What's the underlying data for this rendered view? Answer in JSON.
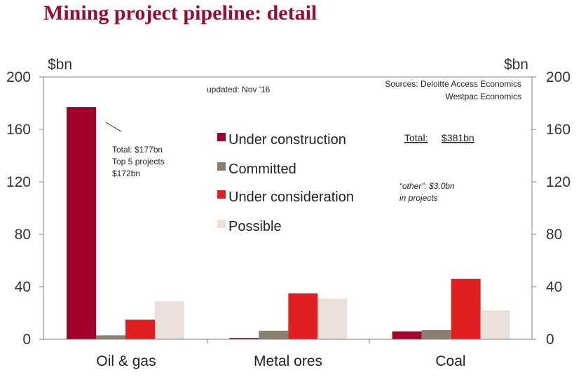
{
  "title": "Mining project pipeline: detail",
  "colors": {
    "under_construction": "#a0002a",
    "committed": "#8a7e70",
    "under_consideration": "#e02020",
    "possible": "#ebe0da"
  },
  "annotations": {
    "updated": "updated:  Nov '16",
    "sources_line1": "Sources: Deloitte Access Economics",
    "sources_line2": "Westpac Economics",
    "callout_line1": "Total: $177bn",
    "callout_line2": "Top 5 projects",
    "callout_line3": "$172bn",
    "total_label": "Total:",
    "total_value": "$381bn",
    "other_line1": "“other”: $3.0bn",
    "other_line2": "in projects"
  },
  "chart_data": {
    "type": "bar",
    "title": "Mining project pipeline: detail",
    "ylabel_left": "$bn",
    "ylabel_right": "$bn",
    "ylim": [
      0,
      200
    ],
    "yticks": [
      "0",
      "40",
      "80",
      "120",
      "160",
      "200"
    ],
    "legend_position": "center",
    "categories": [
      "Oil & gas",
      "Metal ores",
      "Coal"
    ],
    "series": [
      {
        "name": "Under construction",
        "values": [
          177,
          1,
          6
        ]
      },
      {
        "name": "Committed",
        "values": [
          3,
          6.5,
          7
        ]
      },
      {
        "name": "Under consideration",
        "values": [
          15,
          35,
          46
        ]
      },
      {
        "name": "Possible",
        "values": [
          29,
          31,
          22
        ]
      }
    ]
  }
}
